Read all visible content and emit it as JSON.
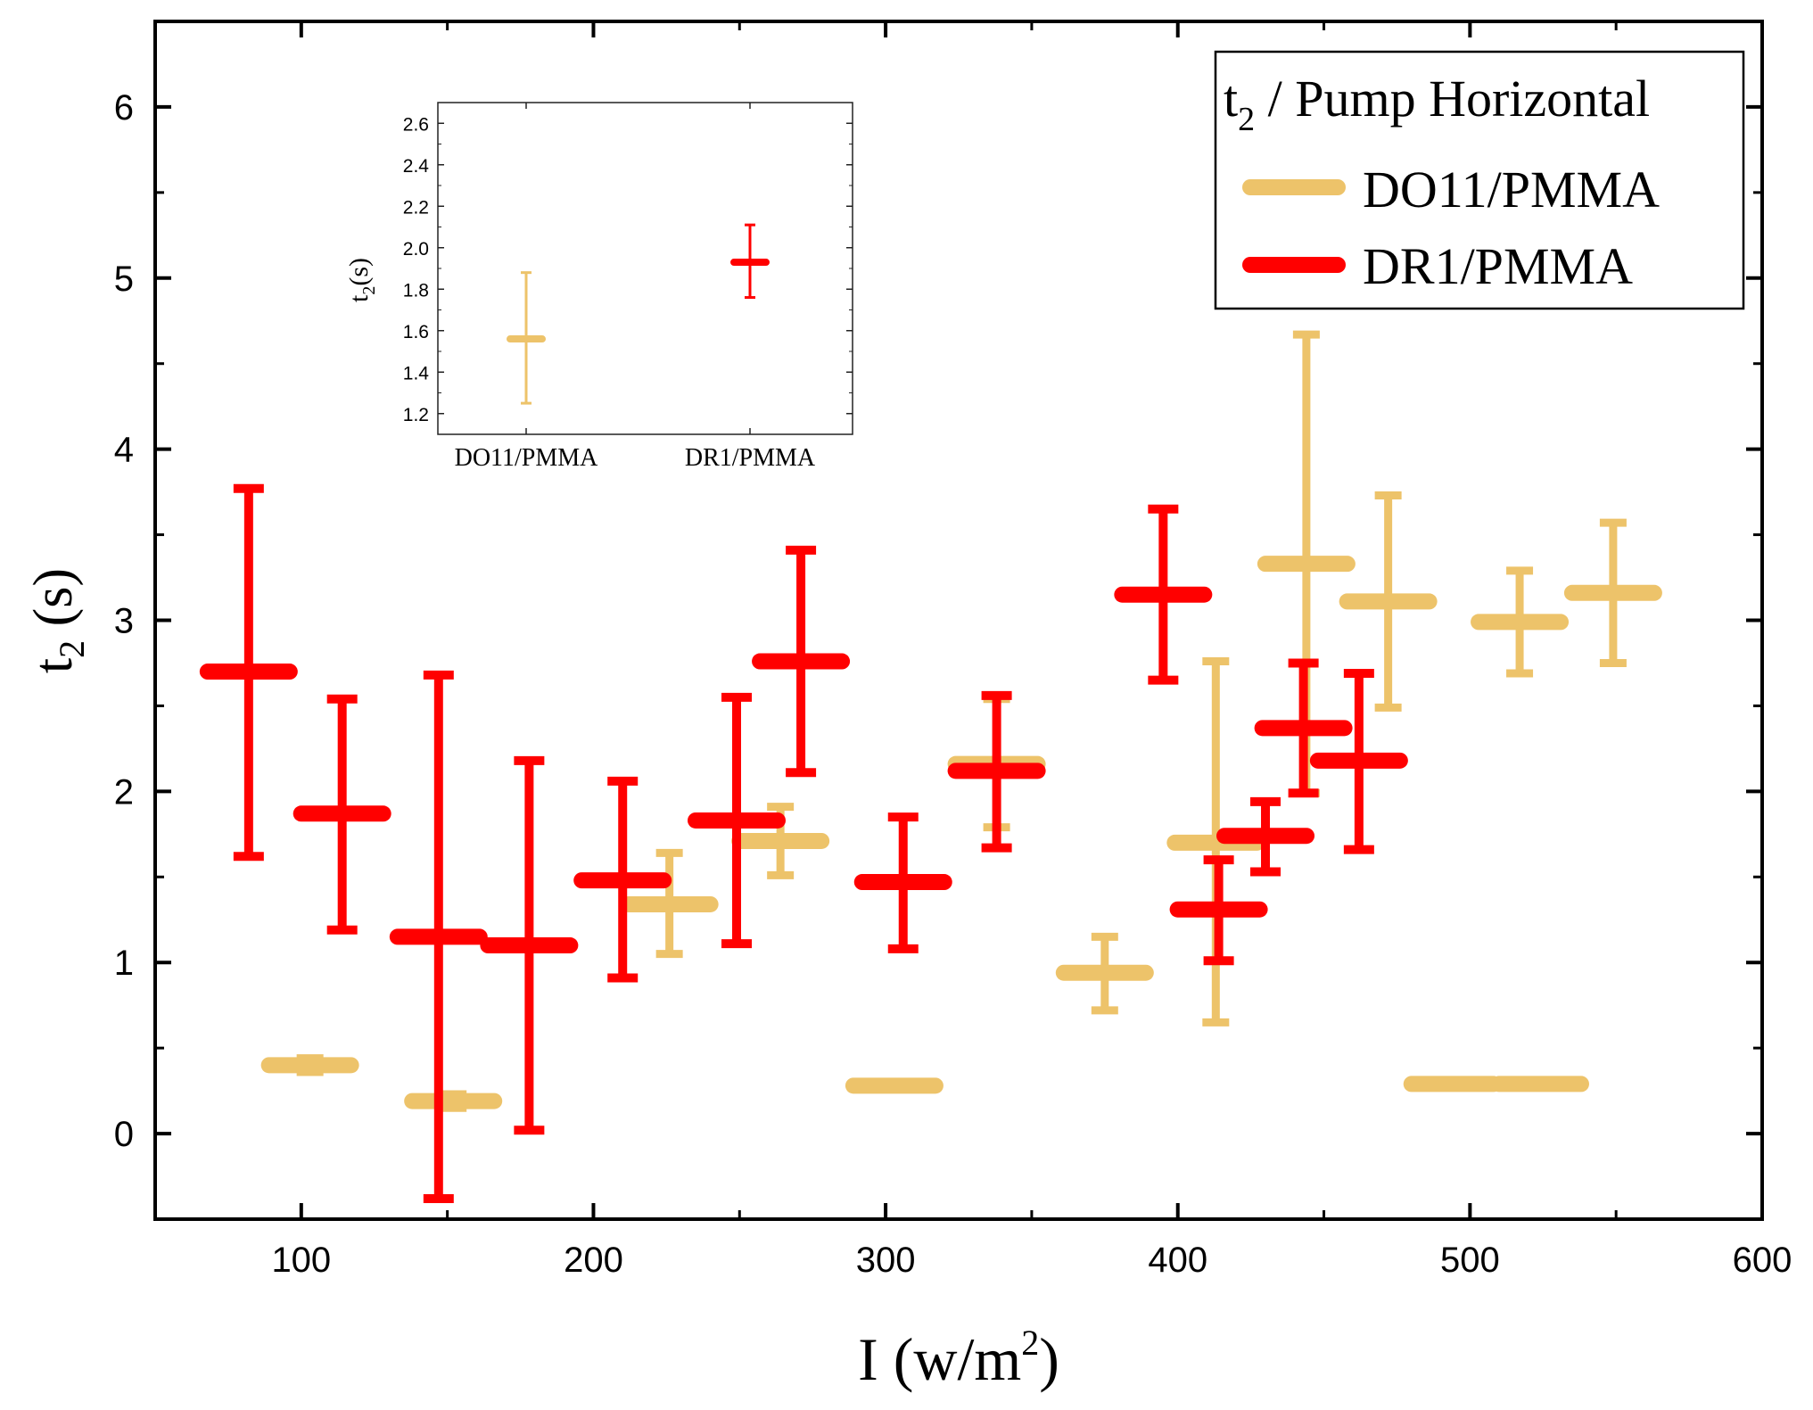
{
  "chart_data": [
    {
      "type": "errorbar",
      "title": "",
      "xlabel": "I (w/m",
      "xlabel_sup": "2",
      "xlabel_end": ")",
      "ylabel_main": "t",
      "ylabel_sub": "2",
      "ylabel_end": " (s)",
      "xlim": [
        50,
        600
      ],
      "ylim": [
        -0.5,
        6.5
      ],
      "x_ticks": [
        100,
        200,
        300,
        400,
        500,
        600
      ],
      "y_ticks": [
        0,
        1,
        2,
        3,
        4,
        5,
        6
      ],
      "legend": {
        "position": "top-right",
        "title_main": "t",
        "title_sub": "2",
        "title_end": " / Pump Horizontal"
      },
      "series": [
        {
          "name": "DO11/PMMA",
          "color": "#EDC36A",
          "points": [
            {
              "x": 103,
              "y": 0.4,
              "lo": 0.36,
              "hi": 0.44
            },
            {
              "x": 152,
              "y": 0.19,
              "lo": 0.15,
              "hi": 0.23
            },
            {
              "x": 226,
              "y": 1.34,
              "lo": 1.05,
              "hi": 1.64
            },
            {
              "x": 264,
              "y": 1.71,
              "lo": 1.51,
              "hi": 1.91
            },
            {
              "x": 303,
              "y": 0.28,
              "lo": 0.26,
              "hi": 0.3
            },
            {
              "x": 338,
              "y": 2.16,
              "lo": 1.79,
              "hi": 2.54
            },
            {
              "x": 375,
              "y": 0.94,
              "lo": 0.72,
              "hi": 1.15
            },
            {
              "x": 413,
              "y": 1.7,
              "lo": 0.65,
              "hi": 2.76
            },
            {
              "x": 444,
              "y": 3.33,
              "lo": 1.99,
              "hi": 4.67
            },
            {
              "x": 472,
              "y": 3.11,
              "lo": 2.49,
              "hi": 3.73
            },
            {
              "x": 494,
              "y": 0.29,
              "lo": 0.27,
              "hi": 0.31
            },
            {
              "x": 517,
              "y": 2.99,
              "lo": 2.69,
              "hi": 3.29
            },
            {
              "x": 524,
              "y": 0.29,
              "lo": 0.27,
              "hi": 0.31
            },
            {
              "x": 549,
              "y": 3.16,
              "lo": 2.75,
              "hi": 3.57
            }
          ]
        },
        {
          "name": "DR1/PMMA",
          "color": "#FF0000",
          "points": [
            {
              "x": 82,
              "y": 2.7,
              "lo": 1.62,
              "hi": 3.77
            },
            {
              "x": 114,
              "y": 1.87,
              "lo": 1.19,
              "hi": 2.54
            },
            {
              "x": 147,
              "y": 1.15,
              "lo": -0.38,
              "hi": 2.68
            },
            {
              "x": 178,
              "y": 1.1,
              "lo": 0.02,
              "hi": 2.18
            },
            {
              "x": 210,
              "y": 1.48,
              "lo": 0.91,
              "hi": 2.06
            },
            {
              "x": 249,
              "y": 1.83,
              "lo": 1.11,
              "hi": 2.55
            },
            {
              "x": 271,
              "y": 2.76,
              "lo": 2.11,
              "hi": 3.41
            },
            {
              "x": 306,
              "y": 1.47,
              "lo": 1.08,
              "hi": 1.85
            },
            {
              "x": 338,
              "y": 2.12,
              "lo": 1.67,
              "hi": 2.56
            },
            {
              "x": 395,
              "y": 3.15,
              "lo": 2.65,
              "hi": 3.65
            },
            {
              "x": 414,
              "y": 1.31,
              "lo": 1.01,
              "hi": 1.6
            },
            {
              "x": 430,
              "y": 1.74,
              "lo": 1.53,
              "hi": 1.94
            },
            {
              "x": 443,
              "y": 2.37,
              "lo": 1.99,
              "hi": 2.75
            },
            {
              "x": 462,
              "y": 2.18,
              "lo": 1.66,
              "hi": 2.69
            }
          ]
        }
      ]
    },
    {
      "type": "errorbar",
      "title": "",
      "position": "inset",
      "xlabel": "",
      "ylabel_main": "t",
      "ylabel_sub": "2",
      "ylabel_end": "(s)",
      "categories": [
        "DO11/PMMA",
        "DR1/PMMA"
      ],
      "ylim": [
        1.1,
        2.7
      ],
      "y_ticks": [
        "1.2",
        "1.4",
        "1.6",
        "1.8",
        "2.0",
        "2.2",
        "2.4",
        "2.6"
      ],
      "series": [
        {
          "name": "DO11/PMMA",
          "color": "#EDC36A",
          "category": 0,
          "y": 1.56,
          "lo": 1.25,
          "hi": 1.88
        },
        {
          "name": "DR1/PMMA",
          "color": "#FF0000",
          "category": 1,
          "y": 1.93,
          "lo": 1.76,
          "hi": 2.11
        }
      ]
    }
  ]
}
